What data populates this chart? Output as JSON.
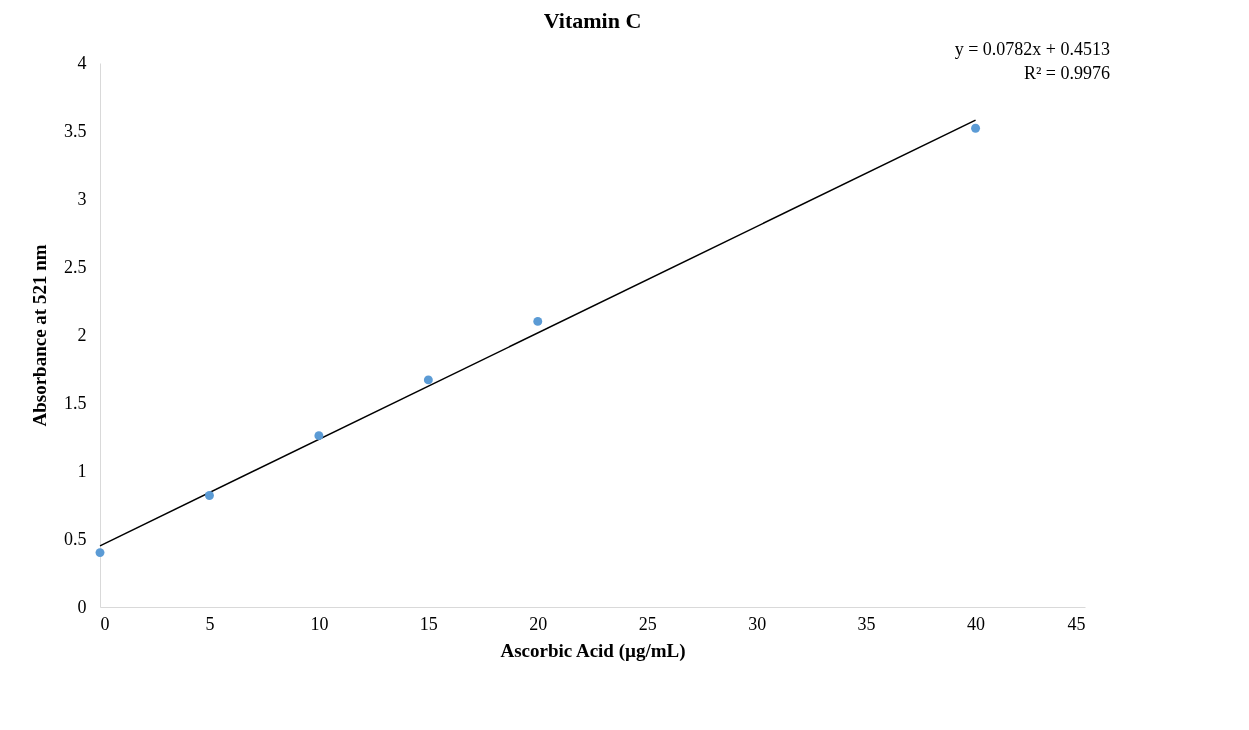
{
  "chart_data": {
    "type": "scatter",
    "title": "Vitamin C",
    "xlabel": "Ascorbic Acid (µg/mL)",
    "ylabel": "Absorbance at 521 nm",
    "x": [
      0,
      5,
      10,
      15,
      20,
      40
    ],
    "series": [
      {
        "color": "#5b9bd5",
        "marker": "circle",
        "values": [
          0.4,
          0.82,
          1.26,
          1.67,
          2.1,
          3.52
        ]
      },
      {
        "type": "line",
        "color": "#000000",
        "x": [
          0,
          40
        ],
        "values": [
          0.45,
          3.58
        ]
      }
    ],
    "annotations": [
      "y = 0.0782x + 0.4513",
      "R² = 0.9976"
    ],
    "xlim": [
      0,
      45
    ],
    "xticks": [
      0,
      5,
      10,
      15,
      20,
      25,
      30,
      35,
      40,
      45
    ],
    "ylim": [
      0,
      4
    ],
    "yticks": [
      0,
      0.5,
      1,
      1.5,
      2,
      2.5,
      3,
      3.5,
      4
    ],
    "grid": false,
    "line_style": "solid"
  }
}
